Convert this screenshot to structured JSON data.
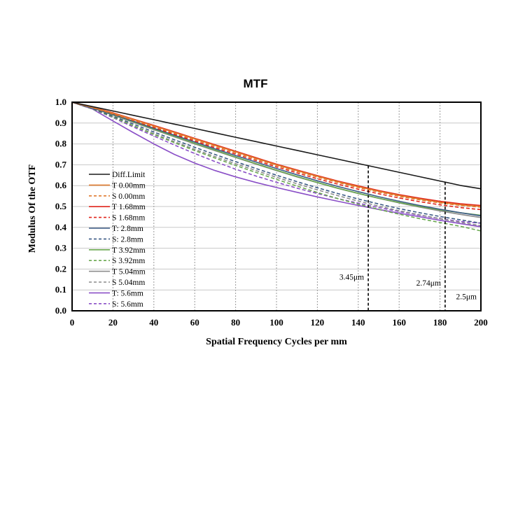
{
  "chart_data": {
    "type": "line",
    "title": "MTF",
    "xlabel": "Spatial Frequency Cycles per mm",
    "ylabel": "Modulus Of the OTF",
    "xlim": [
      0,
      200
    ],
    "ylim": [
      0,
      1
    ],
    "x_ticks": [
      "0",
      "20",
      "40",
      "60",
      "80",
      "100",
      "120",
      "140",
      "160",
      "180",
      "200"
    ],
    "y_ticks": [
      "0.0",
      "0.1",
      "0.2",
      "0.3",
      "0.4",
      "0.5",
      "0.6",
      "0.7",
      "0.8",
      "0.9",
      "1.0"
    ],
    "grid": "vertical dashed gridlines and horizontal solid gridlines",
    "legend_position": "lower-left",
    "x": [
      0,
      10,
      20,
      30,
      40,
      50,
      60,
      70,
      80,
      90,
      100,
      110,
      120,
      130,
      140,
      150,
      160,
      170,
      180,
      190,
      200
    ],
    "series": [
      {
        "name": "Diff.Limit",
        "color": "#1a1a1a",
        "dash": "solid",
        "values": [
          1.0,
          0.979,
          0.958,
          0.937,
          0.916,
          0.895,
          0.874,
          0.853,
          0.832,
          0.811,
          0.79,
          0.769,
          0.748,
          0.727,
          0.706,
          0.685,
          0.664,
          0.643,
          0.622,
          0.601,
          0.585
        ]
      },
      {
        "name": "T 0.00mm",
        "color": "#e07a2e",
        "dash": "solid",
        "values": [
          1.0,
          0.975,
          0.947,
          0.917,
          0.886,
          0.855,
          0.824,
          0.793,
          0.762,
          0.731,
          0.7,
          0.672,
          0.645,
          0.619,
          0.595,
          0.573,
          0.553,
          0.536,
          0.52,
          0.508,
          0.5
        ]
      },
      {
        "name": "S 0.00mm",
        "color": "#e07a2e",
        "dash": "dashed",
        "values": [
          1.0,
          0.974,
          0.945,
          0.914,
          0.883,
          0.851,
          0.82,
          0.789,
          0.758,
          0.727,
          0.697,
          0.668,
          0.641,
          0.615,
          0.591,
          0.569,
          0.549,
          0.532,
          0.517,
          0.505,
          0.497
        ]
      },
      {
        "name": "T 1.68mm",
        "color": "#e0261c",
        "dash": "solid",
        "values": [
          1.0,
          0.976,
          0.949,
          0.919,
          0.889,
          0.858,
          0.827,
          0.796,
          0.765,
          0.734,
          0.703,
          0.675,
          0.648,
          0.622,
          0.599,
          0.577,
          0.557,
          0.54,
          0.525,
          0.513,
          0.505
        ]
      },
      {
        "name": "S 1.68mm",
        "color": "#e0261c",
        "dash": "dashed",
        "values": [
          1.0,
          0.974,
          0.944,
          0.912,
          0.879,
          0.846,
          0.814,
          0.782,
          0.751,
          0.72,
          0.69,
          0.661,
          0.633,
          0.607,
          0.583,
          0.561,
          0.541,
          0.523,
          0.508,
          0.495,
          0.485
        ]
      },
      {
        "name": "T: 2.8mm",
        "color": "#3b5a85",
        "dash": "solid",
        "values": [
          1.0,
          0.973,
          0.942,
          0.909,
          0.875,
          0.842,
          0.809,
          0.776,
          0.744,
          0.713,
          0.682,
          0.652,
          0.623,
          0.596,
          0.571,
          0.547,
          0.525,
          0.505,
          0.487,
          0.47,
          0.455
        ]
      },
      {
        "name": "S: 2.8mm",
        "color": "#3b5a85",
        "dash": "dashed",
        "values": [
          1.0,
          0.969,
          0.933,
          0.895,
          0.857,
          0.82,
          0.784,
          0.749,
          0.715,
          0.682,
          0.65,
          0.619,
          0.59,
          0.562,
          0.536,
          0.512,
          0.49,
          0.47,
          0.452,
          0.436,
          0.42
        ]
      },
      {
        "name": "T 3.92mm",
        "color": "#6aa84f",
        "dash": "solid",
        "values": [
          1.0,
          0.972,
          0.94,
          0.906,
          0.871,
          0.837,
          0.803,
          0.77,
          0.737,
          0.705,
          0.674,
          0.644,
          0.615,
          0.588,
          0.563,
          0.54,
          0.519,
          0.5,
          0.484,
          0.47,
          0.458
        ]
      },
      {
        "name": "S 3.92mm",
        "color": "#6aa84f",
        "dash": "dashed",
        "values": [
          1.0,
          0.968,
          0.929,
          0.887,
          0.845,
          0.806,
          0.768,
          0.732,
          0.697,
          0.663,
          0.63,
          0.598,
          0.567,
          0.538,
          0.511,
          0.486,
          0.463,
          0.442,
          0.423,
          0.405,
          0.383
        ]
      },
      {
        "name": "T 5.04mm",
        "color": "#8c8c8c",
        "dash": "solid",
        "values": [
          1.0,
          0.971,
          0.938,
          0.903,
          0.868,
          0.834,
          0.8,
          0.767,
          0.735,
          0.703,
          0.672,
          0.642,
          0.614,
          0.587,
          0.562,
          0.539,
          0.517,
          0.497,
          0.479,
          0.462,
          0.447
        ]
      },
      {
        "name": "S 5.04mm",
        "color": "#8c8c8c",
        "dash": "dashed",
        "values": [
          1.0,
          0.967,
          0.928,
          0.888,
          0.849,
          0.811,
          0.774,
          0.739,
          0.705,
          0.672,
          0.64,
          0.609,
          0.58,
          0.552,
          0.526,
          0.502,
          0.48,
          0.46,
          0.441,
          0.424,
          0.408
        ]
      },
      {
        "name": "T: 5.6mm",
        "color": "#8a4fc7",
        "dash": "solid",
        "values": [
          1.0,
          0.967,
          0.91,
          0.854,
          0.8,
          0.75,
          0.708,
          0.672,
          0.642,
          0.615,
          0.591,
          0.568,
          0.546,
          0.525,
          0.505,
          0.486,
          0.468,
          0.451,
          0.434,
          0.418,
          0.403
        ]
      },
      {
        "name": "S: 5.6mm",
        "color": "#8a4fc7",
        "dash": "dashed",
        "values": [
          1.0,
          0.969,
          0.926,
          0.881,
          0.838,
          0.795,
          0.754,
          0.715,
          0.679,
          0.646,
          0.616,
          0.588,
          0.562,
          0.538,
          0.516,
          0.495,
          0.476,
          0.458,
          0.442,
          0.428,
          0.42
        ]
      }
    ],
    "annotations": [
      {
        "label": "3.45μm",
        "x": 144.9
      },
      {
        "label": "2.74μm",
        "x": 182.5
      },
      {
        "label": "2.5μm",
        "x": 200
      }
    ]
  }
}
